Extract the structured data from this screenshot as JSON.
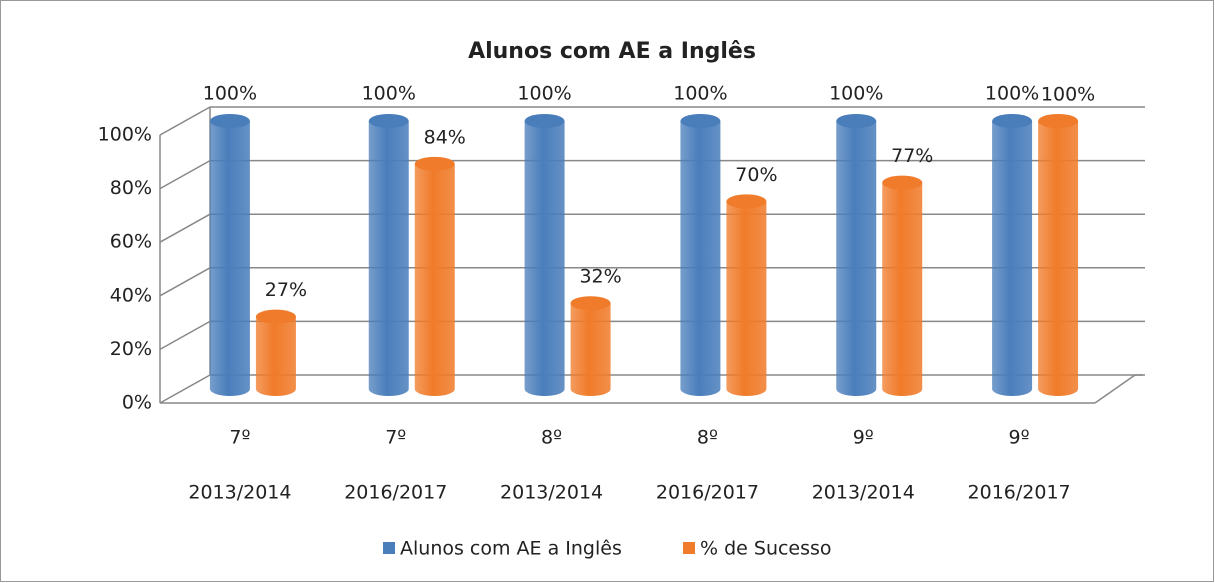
{
  "chart_data": {
    "type": "bar3d",
    "title": "Alunos com AE a Inglês",
    "categories": [
      [
        "7º",
        "2013/2014"
      ],
      [
        "7º",
        "2016/2017"
      ],
      [
        "8º",
        "2013/2014"
      ],
      [
        "8º",
        "2016/2017"
      ],
      [
        "9º",
        "2013/2014"
      ],
      [
        "9º",
        "2016/2017"
      ]
    ],
    "series": [
      {
        "name": "Alunos com AE a Inglês",
        "color": "#4a7ebb",
        "values": [
          100,
          100,
          100,
          100,
          100,
          100
        ],
        "value_labels": [
          "100%",
          "100%",
          "100%",
          "100%",
          "100%",
          "100%"
        ]
      },
      {
        "name": "% de Sucesso",
        "color": "#f07b2a",
        "values": [
          27,
          84,
          32,
          70,
          77,
          100
        ],
        "value_labels": [
          "27%",
          "84%",
          "32%",
          "70%",
          "77%",
          "100%"
        ]
      }
    ],
    "ylim": [
      0,
      100
    ],
    "yticks": [
      {
        "value": 0,
        "label": "0%"
      },
      {
        "value": 20,
        "label": "20%"
      },
      {
        "value": 40,
        "label": "40%"
      },
      {
        "value": 60,
        "label": "60%"
      },
      {
        "value": 80,
        "label": "80%"
      },
      {
        "value": 100,
        "label": "100%"
      }
    ],
    "grid": true,
    "legend": "bottom"
  }
}
